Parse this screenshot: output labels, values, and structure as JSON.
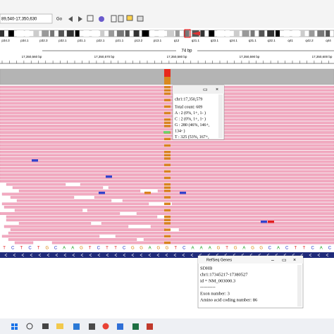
{
  "toolbar": {
    "locus": "89,540-17,350,630",
    "go": "Go"
  },
  "ideogram": {
    "bands": [
      "p34.3",
      "p34.1",
      "p32.3",
      "p32.1",
      "p31.1",
      "p22.1",
      "p21.1",
      "p13.2",
      "p13.1",
      "q12",
      "q21.1",
      "q23.1",
      "q24.1",
      "q31.1",
      "q32.1",
      "q41",
      "q42.2",
      "q44"
    ]
  },
  "ruler": {
    "span": "74 bp",
    "labels": [
      "17,350,560 bp",
      "17,350,570 bp",
      "17,350,580 bp",
      "17,350,590 bp",
      "17,350,600 bp"
    ]
  },
  "popup": {
    "title": "chr1:17,350,579",
    "lines": [
      "Total count: 609",
      "A : 2 (0%, 1+, 1- )",
      "C : 2 (0%, 1+, 1- )",
      "G : 280 (46%, 146+,",
      "134- )",
      "T : 325 (53%, 167+,"
    ]
  },
  "sequence": [
    "T",
    "C",
    "T",
    "C",
    "T",
    "G",
    "C",
    "A",
    "A",
    "G",
    "T",
    "C",
    "T",
    "T",
    "C",
    "G",
    "G",
    "A",
    "G",
    "G",
    "T",
    "C",
    "A",
    "A",
    "A",
    "G",
    "T",
    "G",
    "A",
    "G",
    "G",
    "C",
    "A",
    "C",
    "T",
    "T",
    "C",
    "A",
    "C"
  ],
  "gene_popup": {
    "title": "RefSeq Genes",
    "lines": [
      "SDHB",
      "chr1:17345217-17380527",
      "id = NM_003000.3",
      "----------",
      "Exon number: 3",
      "Amino acid coding number: 86"
    ]
  }
}
